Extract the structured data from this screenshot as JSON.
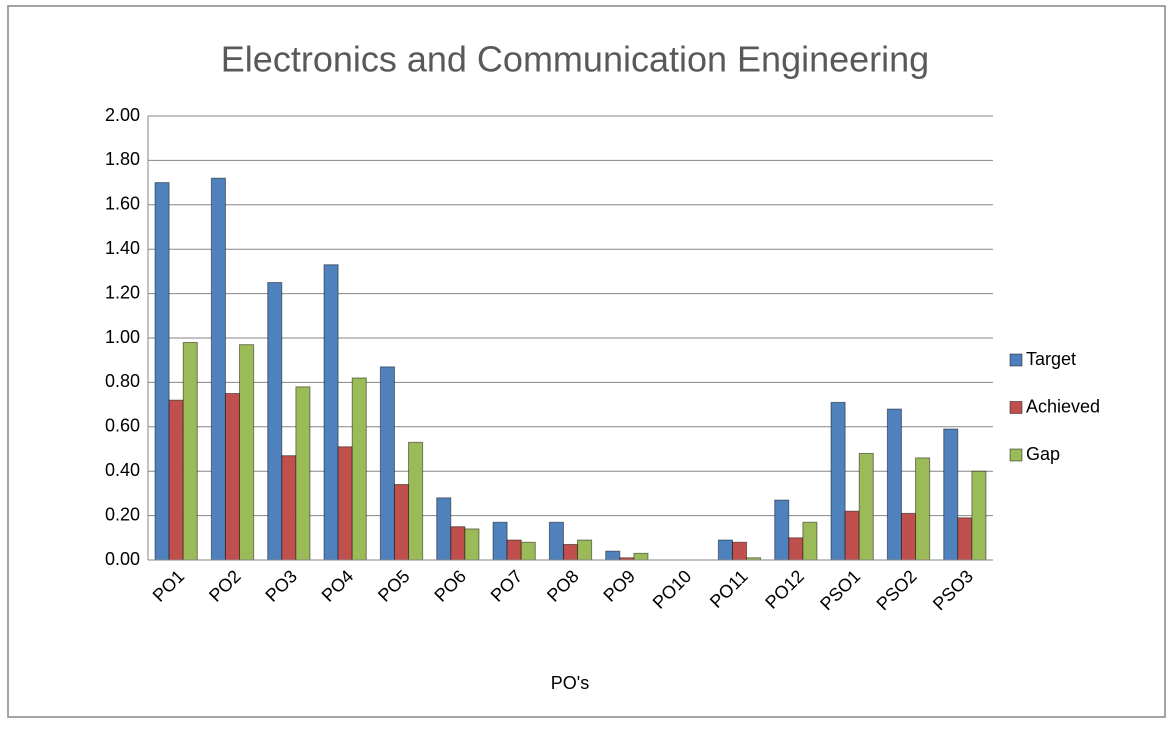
{
  "chart_data": {
    "type": "bar",
    "title": "Electronics and Communication Engineering",
    "x_label": "PO's",
    "categories": [
      "PO1",
      "PO2",
      "PO3",
      "PO4",
      "PO5",
      "PO6",
      "PO7",
      "PO8",
      "PO9",
      "PO10",
      "PO11",
      "PO12",
      "PSO1",
      "PSO2",
      "PSO3"
    ],
    "series": [
      {
        "name": "Target",
        "color": "#4f81bd",
        "values": [
          1.7,
          1.72,
          1.25,
          1.33,
          0.87,
          0.28,
          0.17,
          0.17,
          0.04,
          0,
          0.09,
          0.27,
          0.71,
          0.68,
          0.59
        ]
      },
      {
        "name": "Achieved",
        "color": "#c0504d",
        "values": [
          0.72,
          0.75,
          0.47,
          0.51,
          0.34,
          0.15,
          0.09,
          0.07,
          0.01,
          0,
          0.08,
          0.1,
          0.22,
          0.21,
          0.19
        ]
      },
      {
        "name": "Gap",
        "color": "#9bbb59",
        "values": [
          0.98,
          0.97,
          0.78,
          0.82,
          0.53,
          0.14,
          0.08,
          0.09,
          0.03,
          0,
          0.01,
          0.17,
          0.48,
          0.46,
          0.4
        ]
      }
    ],
    "ylim": [
      0,
      2
    ],
    "yticks": [
      {
        "value": 0,
        "label": "0.00"
      },
      {
        "value": 0.2,
        "label": "0.20"
      },
      {
        "value": 0.4,
        "label": "0.40"
      },
      {
        "value": 0.6,
        "label": "0.60"
      },
      {
        "value": 0.8,
        "label": "0.80"
      },
      {
        "value": 1.0,
        "label": "1.00"
      },
      {
        "value": 1.2,
        "label": "1.20"
      },
      {
        "value": 1.4,
        "label": "1.40"
      },
      {
        "value": 1.6,
        "label": "1.60"
      },
      {
        "value": 1.8,
        "label": "1.80"
      },
      {
        "value": 2.0,
        "label": "2.00"
      }
    ],
    "grid": true,
    "legend": "right"
  }
}
